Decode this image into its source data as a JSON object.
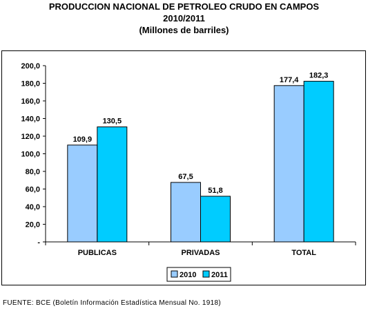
{
  "header": {
    "title_line1": "PRODUCCION NACIONAL DE PETROLEO CRUDO EN CAMPOS",
    "title_line2": "2010/2011",
    "title_line3": "(Millones de barriles)"
  },
  "source": "FUENTE: BCE (Boletín Información Estadística Mensual No. 1918)",
  "chart_data": {
    "type": "bar",
    "title": "PRODUCCION NACIONAL DE PETROLEO CRUDO EN CAMPOS 2010/2011 (Millones de barriles)",
    "categories": [
      "PUBLICAS",
      "PRIVADAS",
      "TOTAL"
    ],
    "series": [
      {
        "name": "2010",
        "values": [
          109.9,
          67.5,
          177.4
        ],
        "labels": [
          "109,9",
          "67,5",
          "177,4"
        ],
        "color": "#99ccff"
      },
      {
        "name": "2011",
        "values": [
          130.5,
          51.8,
          182.3
        ],
        "labels": [
          "130,5",
          "51,8",
          "182,3"
        ],
        "color": "#00ccff"
      }
    ],
    "ylim": [
      0,
      200
    ],
    "yticks": [
      0,
      20,
      40,
      60,
      80,
      100,
      120,
      140,
      160,
      180,
      200
    ],
    "ytick_labels": [
      "-",
      "20,0",
      "40,0",
      "60,0",
      "80,0",
      "100,0",
      "120,0",
      "140,0",
      "160,0",
      "180,0",
      "200,0"
    ],
    "grid": false,
    "legend_position": "bottom-center"
  }
}
